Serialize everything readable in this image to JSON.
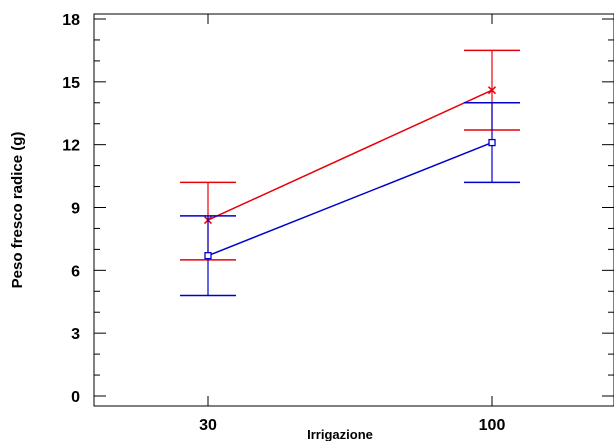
{
  "chart_data": {
    "type": "line",
    "title": "",
    "xlabel": "Irrigazione",
    "ylabel": "Peso fresco radice (g)",
    "categories": [
      "30",
      "100"
    ],
    "ylim": [
      0,
      18.4
    ],
    "yticks": [
      0,
      3,
      6,
      9,
      12,
      15,
      18
    ],
    "y_minor_step": 1,
    "grid": false,
    "legend": "none",
    "series": [
      {
        "color": "#e8000b",
        "marker": "x",
        "values": [
          8.4,
          14.6
        ],
        "err_low": [
          6.5,
          12.7
        ],
        "err_high": [
          10.2,
          16.5
        ]
      },
      {
        "color": "#0000cc",
        "marker": "square",
        "values": [
          6.7,
          12.1
        ],
        "err_low": [
          4.8,
          10.2
        ],
        "err_high": [
          8.6,
          14.0
        ]
      }
    ]
  }
}
